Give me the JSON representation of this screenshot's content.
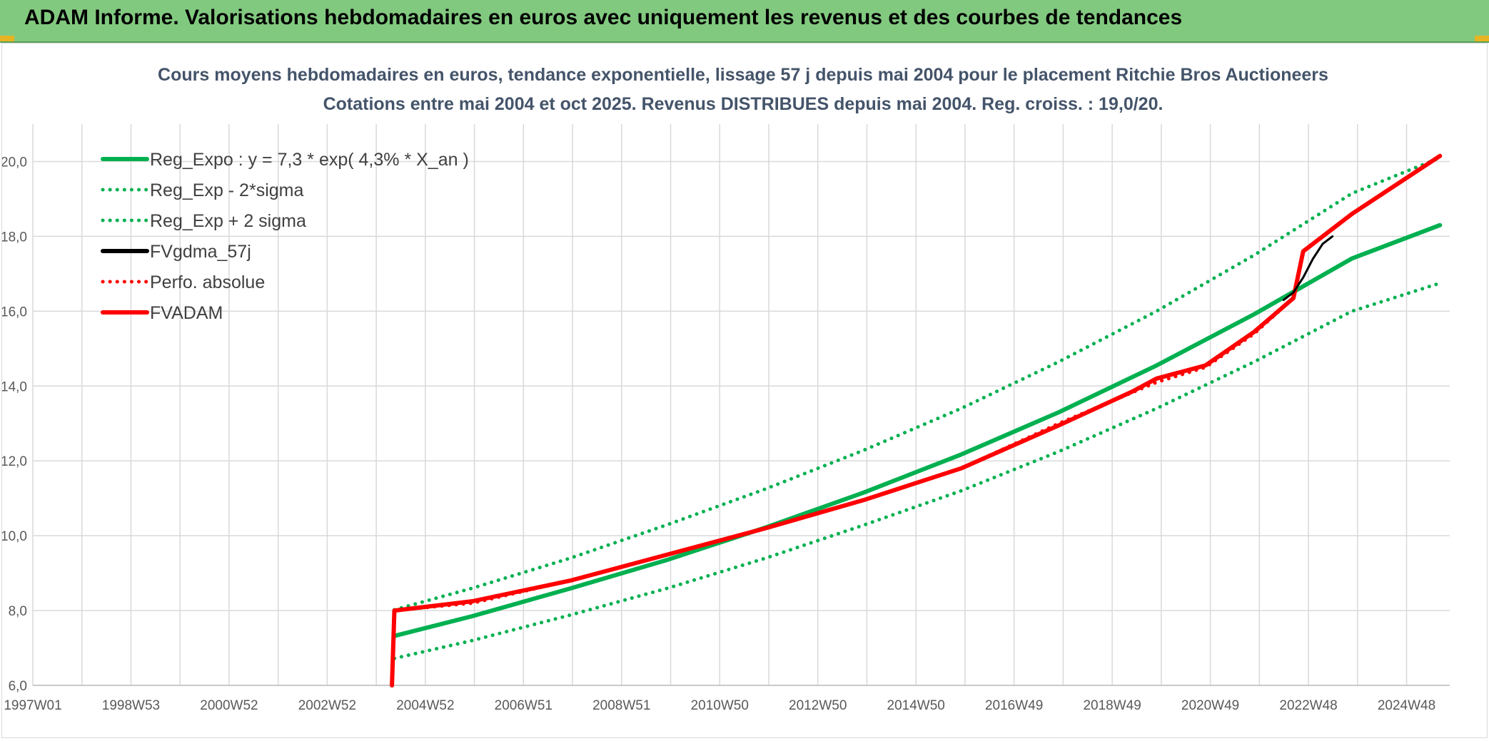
{
  "banner": {
    "title": "ADAM Informe. Valorisations hebdomadaires en euros avec uniquement les revenus et des courbes de tendances"
  },
  "chart_data": {
    "type": "line",
    "title_line1": "Cours moyens hebdomadaires en euros, tendance exponentielle, lissage 57 j depuis mai 2004 pour le placement Ritchie Bros Auctioneers",
    "title_line2": "Cotations entre mai 2004 et oct 2025. Revenus DISTRIBUES depuis mai 2004. Reg. croiss. : 19,0/20.",
    "x_tick_labels": [
      "1997W01",
      "1998W53",
      "2000W52",
      "2002W52",
      "2004W52",
      "2006W51",
      "2008W51",
      "2010W50",
      "2012W50",
      "2014W50",
      "2016W49",
      "2018W49",
      "2020W49",
      "2022W48",
      "2024W48"
    ],
    "y_tick_labels": [
      "6,0",
      "8,0",
      "10,0",
      "12,0",
      "14,0",
      "16,0",
      "18,0",
      "20,0"
    ],
    "ylim": [
      6,
      21
    ],
    "xlim": [
      1997.0,
      2026.0
    ],
    "grid": true,
    "legend_position": "top-left",
    "colors": {
      "green": "#00b050",
      "red": "#ff0000",
      "black": "#000000",
      "grid": "#d9d9d9"
    },
    "series": [
      {
        "name": "Reg_Expo : y = 7,3 * exp( 4,3% *  X_an )",
        "style": "solid",
        "color": "#00b050",
        "x": [
          2004.4,
          2006,
          2008,
          2010,
          2012,
          2014,
          2016,
          2018,
          2020,
          2022,
          2024,
          2025.8
        ],
        "y": [
          7.32,
          7.85,
          8.59,
          9.36,
          10.22,
          11.15,
          12.17,
          13.3,
          14.55,
          15.92,
          17.41,
          18.3
        ]
      },
      {
        "name": "Reg_Exp - 2*sigma",
        "style": "dotted",
        "color": "#00b050",
        "x": [
          2004.4,
          2006,
          2008,
          2010,
          2012,
          2014,
          2016,
          2018,
          2020,
          2022,
          2024,
          2025.8
        ],
        "y": [
          6.72,
          7.2,
          7.88,
          8.6,
          9.4,
          10.28,
          11.2,
          12.25,
          13.4,
          14.65,
          16.0,
          16.75
        ]
      },
      {
        "name": "Reg_Exp + 2 sigma",
        "style": "dotted",
        "color": "#00b050",
        "x": [
          2004.4,
          2006,
          2008,
          2010,
          2012,
          2014,
          2016,
          2018,
          2020,
          2022,
          2024,
          2025.8
        ],
        "y": [
          8.02,
          8.6,
          9.4,
          10.3,
          11.25,
          12.28,
          13.4,
          14.65,
          16.0,
          17.5,
          19.15,
          20.1
        ]
      },
      {
        "name": "FVgdma_57j",
        "style": "solid",
        "color": "#000000",
        "x": [
          2022.6,
          2022.8,
          2023.0,
          2023.2,
          2023.4,
          2023.6
        ],
        "y": [
          16.3,
          16.5,
          16.9,
          17.4,
          17.8,
          18.0
        ]
      },
      {
        "name": "Perfo. absolue",
        "style": "dotted",
        "color": "#ff0000",
        "x": [
          2004.35,
          2004.4,
          2006,
          2008,
          2010,
          2012,
          2014,
          2016,
          2018,
          2020,
          2021,
          2022,
          2022.8,
          2023.0,
          2024,
          2025.8
        ],
        "y": [
          6.0,
          8.0,
          8.2,
          8.8,
          9.5,
          10.2,
          10.95,
          11.8,
          13.0,
          14.1,
          14.5,
          15.4,
          16.35,
          17.6,
          18.6,
          20.15
        ]
      },
      {
        "name": "FVADAM",
        "style": "solid",
        "color": "#ff0000",
        "x": [
          2004.35,
          2004.4,
          2006,
          2008,
          2010,
          2012,
          2014,
          2016,
          2018,
          2019.5,
          2020,
          2021,
          2022,
          2022.8,
          2023.0,
          2024,
          2025.8
        ],
        "y": [
          6.0,
          8.0,
          8.25,
          8.8,
          9.5,
          10.2,
          10.95,
          11.8,
          12.95,
          13.85,
          14.2,
          14.55,
          15.45,
          16.35,
          17.6,
          18.6,
          20.15
        ]
      }
    ]
  }
}
